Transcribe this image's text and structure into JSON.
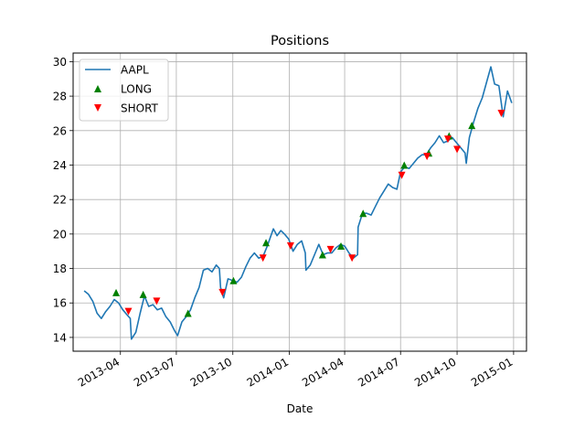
{
  "chart_data": {
    "type": "line",
    "title": "Positions",
    "xlabel": "Date",
    "ylabel": "",
    "x_ticks": [
      "2013-04",
      "2013-07",
      "2013-10",
      "2014-01",
      "2014-04",
      "2014-07",
      "2014-10",
      "2015-01"
    ],
    "y_ticks": [
      "14",
      "16",
      "18",
      "20",
      "22",
      "24",
      "26",
      "28",
      "30"
    ],
    "xlim": [
      "2013-01-14",
      "2015-01-22"
    ],
    "ylim": [
      13.2,
      30.5
    ],
    "grid": true,
    "legend_position": "top-left",
    "colors": {
      "line": "#1f77b4",
      "long": "#008000",
      "short": "#ff0000"
    },
    "series": [
      {
        "name": "AAPL",
        "marker": "line",
        "points": [
          [
            "2013-02-01",
            16.7
          ],
          [
            "2013-02-08",
            16.5
          ],
          [
            "2013-02-15",
            16.1
          ],
          [
            "2013-02-22",
            15.4
          ],
          [
            "2013-03-01",
            15.1
          ],
          [
            "2013-03-08",
            15.5
          ],
          [
            "2013-03-15",
            15.8
          ],
          [
            "2013-03-22",
            16.2
          ],
          [
            "2013-03-29",
            16.0
          ],
          [
            "2013-04-05",
            15.6
          ],
          [
            "2013-04-12",
            15.3
          ],
          [
            "2013-04-17",
            15.1
          ],
          [
            "2013-04-19",
            13.9
          ],
          [
            "2013-04-26",
            14.3
          ],
          [
            "2013-05-03",
            15.4
          ],
          [
            "2013-05-10",
            16.4
          ],
          [
            "2013-05-17",
            15.8
          ],
          [
            "2013-05-24",
            15.9
          ],
          [
            "2013-05-31",
            15.6
          ],
          [
            "2013-06-07",
            15.7
          ],
          [
            "2013-06-14",
            15.2
          ],
          [
            "2013-06-21",
            14.9
          ],
          [
            "2013-06-28",
            14.4
          ],
          [
            "2013-07-03",
            14.1
          ],
          [
            "2013-07-10",
            14.9
          ],
          [
            "2013-07-17",
            15.2
          ],
          [
            "2013-07-24",
            15.6
          ],
          [
            "2013-07-31",
            16.3
          ],
          [
            "2013-08-07",
            16.9
          ],
          [
            "2013-08-14",
            17.9
          ],
          [
            "2013-08-21",
            18.0
          ],
          [
            "2013-08-28",
            17.8
          ],
          [
            "2013-09-04",
            18.2
          ],
          [
            "2013-09-09",
            18.0
          ],
          [
            "2013-09-11",
            16.9
          ],
          [
            "2013-09-16",
            16.3
          ],
          [
            "2013-09-23",
            17.4
          ],
          [
            "2013-10-01",
            17.3
          ],
          [
            "2013-10-08",
            17.2
          ],
          [
            "2013-10-15",
            17.5
          ],
          [
            "2013-10-22",
            18.1
          ],
          [
            "2013-10-29",
            18.6
          ],
          [
            "2013-11-05",
            18.9
          ],
          [
            "2013-11-12",
            18.6
          ],
          [
            "2013-11-19",
            18.7
          ],
          [
            "2013-11-26",
            19.3
          ],
          [
            "2013-12-02",
            19.9
          ],
          [
            "2013-12-06",
            20.3
          ],
          [
            "2013-12-12",
            19.9
          ],
          [
            "2013-12-18",
            20.2
          ],
          [
            "2013-12-24",
            20.0
          ],
          [
            "2013-12-31",
            19.7
          ],
          [
            "2014-01-07",
            19.0
          ],
          [
            "2014-01-14",
            19.4
          ],
          [
            "2014-01-21",
            19.6
          ],
          [
            "2014-01-27",
            18.9
          ],
          [
            "2014-01-28",
            17.9
          ],
          [
            "2014-02-04",
            18.2
          ],
          [
            "2014-02-11",
            18.8
          ],
          [
            "2014-02-18",
            19.4
          ],
          [
            "2014-02-25",
            18.8
          ],
          [
            "2014-03-04",
            18.9
          ],
          [
            "2014-03-11",
            18.9
          ],
          [
            "2014-03-18",
            19.2
          ],
          [
            "2014-03-25",
            19.4
          ],
          [
            "2014-04-01",
            19.3
          ],
          [
            "2014-04-08",
            18.9
          ],
          [
            "2014-04-15",
            18.6
          ],
          [
            "2014-04-22",
            18.8
          ],
          [
            "2014-04-23",
            20.4
          ],
          [
            "2014-04-30",
            21.2
          ],
          [
            "2014-05-07",
            21.2
          ],
          [
            "2014-05-14",
            21.1
          ],
          [
            "2014-05-21",
            21.6
          ],
          [
            "2014-05-28",
            22.1
          ],
          [
            "2014-06-04",
            22.5
          ],
          [
            "2014-06-11",
            22.9
          ],
          [
            "2014-06-18",
            22.7
          ],
          [
            "2014-06-25",
            22.6
          ],
          [
            "2014-07-01",
            23.6
          ],
          [
            "2014-07-08",
            23.9
          ],
          [
            "2014-07-15",
            23.8
          ],
          [
            "2014-07-22",
            24.1
          ],
          [
            "2014-07-29",
            24.4
          ],
          [
            "2014-08-05",
            24.6
          ],
          [
            "2014-08-12",
            24.6
          ],
          [
            "2014-08-19",
            25.0
          ],
          [
            "2014-08-26",
            25.3
          ],
          [
            "2014-09-02",
            25.7
          ],
          [
            "2014-09-09",
            25.3
          ],
          [
            "2014-09-16",
            25.4
          ],
          [
            "2014-09-23",
            25.6
          ],
          [
            "2014-09-30",
            25.3
          ],
          [
            "2014-10-07",
            25.0
          ],
          [
            "2014-10-14",
            24.7
          ],
          [
            "2014-10-16",
            24.1
          ],
          [
            "2014-10-21",
            25.6
          ],
          [
            "2014-10-28",
            26.5
          ],
          [
            "2014-11-04",
            27.3
          ],
          [
            "2014-11-11",
            27.9
          ],
          [
            "2014-11-18",
            28.8
          ],
          [
            "2014-11-25",
            29.7
          ],
          [
            "2014-12-01",
            28.7
          ],
          [
            "2014-12-08",
            28.6
          ],
          [
            "2014-12-15",
            26.8
          ],
          [
            "2014-12-22",
            28.3
          ],
          [
            "2014-12-29",
            27.6
          ]
        ]
      },
      {
        "name": "LONG",
        "marker": "triangle-up",
        "points": [
          [
            "2013-03-25",
            16.6
          ],
          [
            "2013-05-08",
            16.5
          ],
          [
            "2013-07-20",
            15.4
          ],
          [
            "2013-10-02",
            17.3
          ],
          [
            "2013-11-24",
            19.5
          ],
          [
            "2014-02-24",
            18.8
          ],
          [
            "2014-03-26",
            19.3
          ],
          [
            "2014-05-01",
            21.2
          ],
          [
            "2014-07-07",
            24.0
          ],
          [
            "2014-08-16",
            24.7
          ],
          [
            "2014-09-18",
            25.7
          ],
          [
            "2014-10-25",
            26.3
          ]
        ]
      },
      {
        "name": "SHORT",
        "marker": "triangle-down",
        "points": [
          [
            "2013-04-14",
            15.5
          ],
          [
            "2013-05-30",
            16.1
          ],
          [
            "2013-09-14",
            16.6
          ],
          [
            "2013-11-19",
            18.6
          ],
          [
            "2014-01-03",
            19.3
          ],
          [
            "2014-03-09",
            19.1
          ],
          [
            "2014-04-13",
            18.6
          ],
          [
            "2014-07-03",
            23.4
          ],
          [
            "2014-08-13",
            24.5
          ],
          [
            "2014-09-16",
            25.5
          ],
          [
            "2014-10-01",
            24.9
          ],
          [
            "2014-12-12",
            27.0
          ]
        ]
      }
    ]
  }
}
